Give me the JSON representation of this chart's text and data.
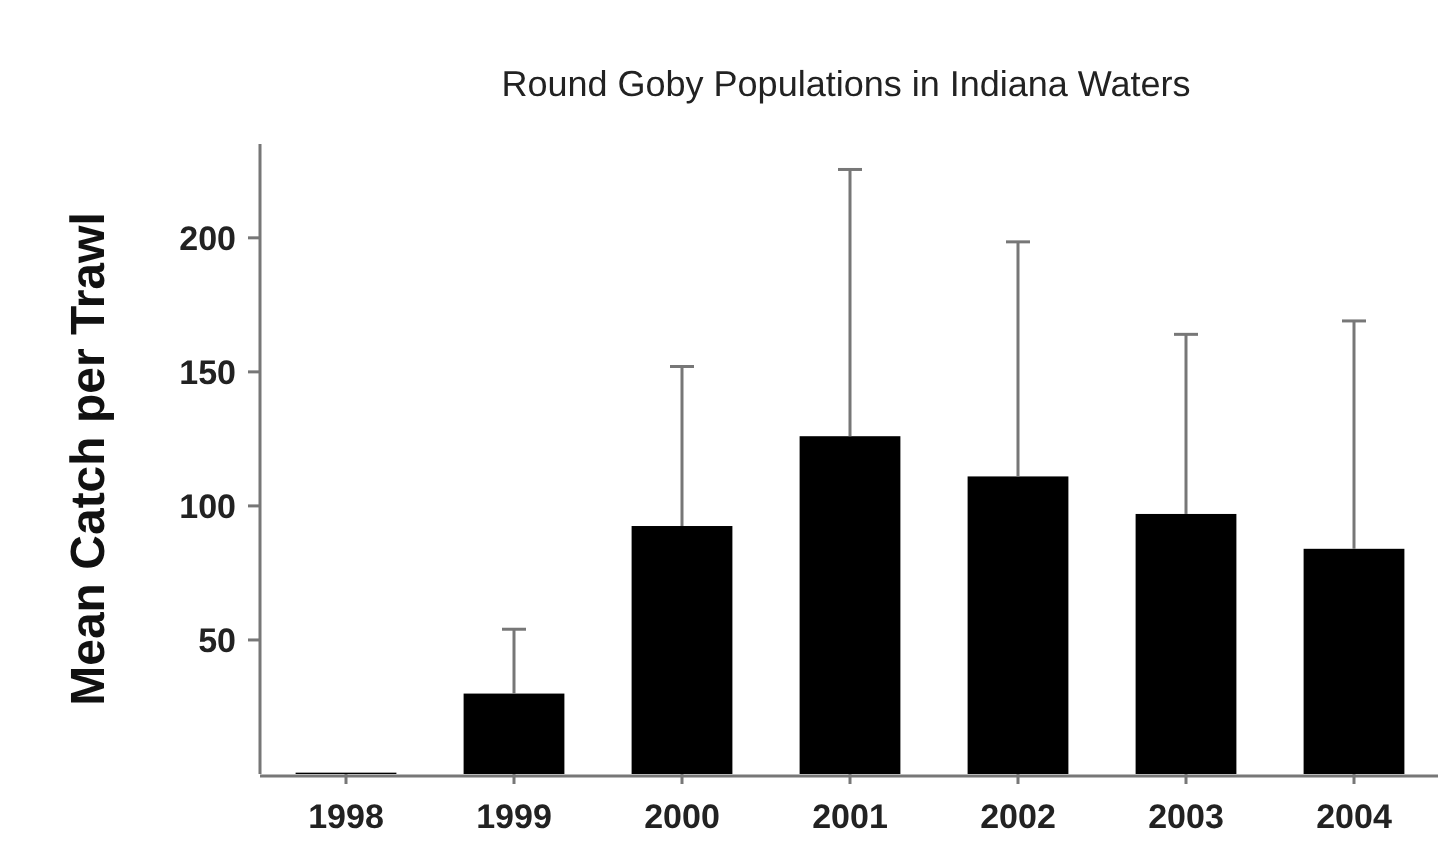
{
  "chart_data": {
    "type": "bar",
    "title": "Round Goby Populations in Indiana Waters",
    "ylabel": "Mean Catch per Trawl",
    "categories": [
      "1998",
      "1999",
      "2000",
      "2001",
      "2002",
      "2003",
      "2004"
    ],
    "values": [
      0.5,
      30,
      92.5,
      126,
      111,
      97,
      84
    ],
    "errors": [
      null,
      [
        30,
        54
      ],
      [
        92.5,
        152
      ],
      [
        126,
        225.5
      ],
      [
        111,
        198.5
      ],
      [
        97,
        164
      ],
      [
        84,
        169
      ]
    ],
    "color": "#000000",
    "ylim": [
      0,
      235
    ],
    "yticks": [
      50,
      100,
      150,
      200
    ],
    "grid": false
  }
}
